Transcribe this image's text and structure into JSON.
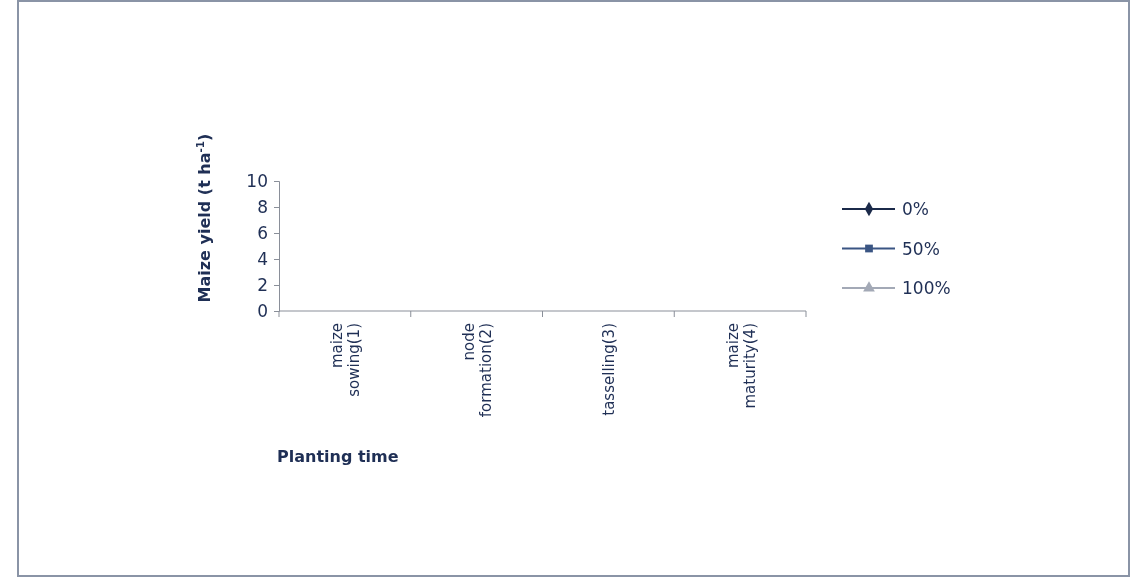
{
  "chart_data": {
    "type": "line",
    "xlabel": "Planting time",
    "ylabel": "Maize yield (t ha$^{-1}$)",
    "categories": [
      "maize sowing(1)",
      "node formation(2)",
      "tasselling(3)",
      "maize maturity(4)"
    ],
    "ylim": [
      0,
      10
    ],
    "yticks": [
      0,
      2,
      4,
      6,
      8,
      10
    ],
    "grid": false,
    "legend": "right",
    "series": [
      {
        "name": "0%",
        "color": "#1b2a4a",
        "marker": "diamond",
        "values": [
          null,
          null,
          null,
          null
        ]
      },
      {
        "name": "50%",
        "color": "#3a5583",
        "marker": "square",
        "values": [
          null,
          null,
          null,
          null
        ]
      },
      {
        "name": "100%",
        "color": "#a3a9b6",
        "marker": "triangle",
        "values": [
          null,
          null,
          null,
          null
        ]
      }
    ]
  }
}
